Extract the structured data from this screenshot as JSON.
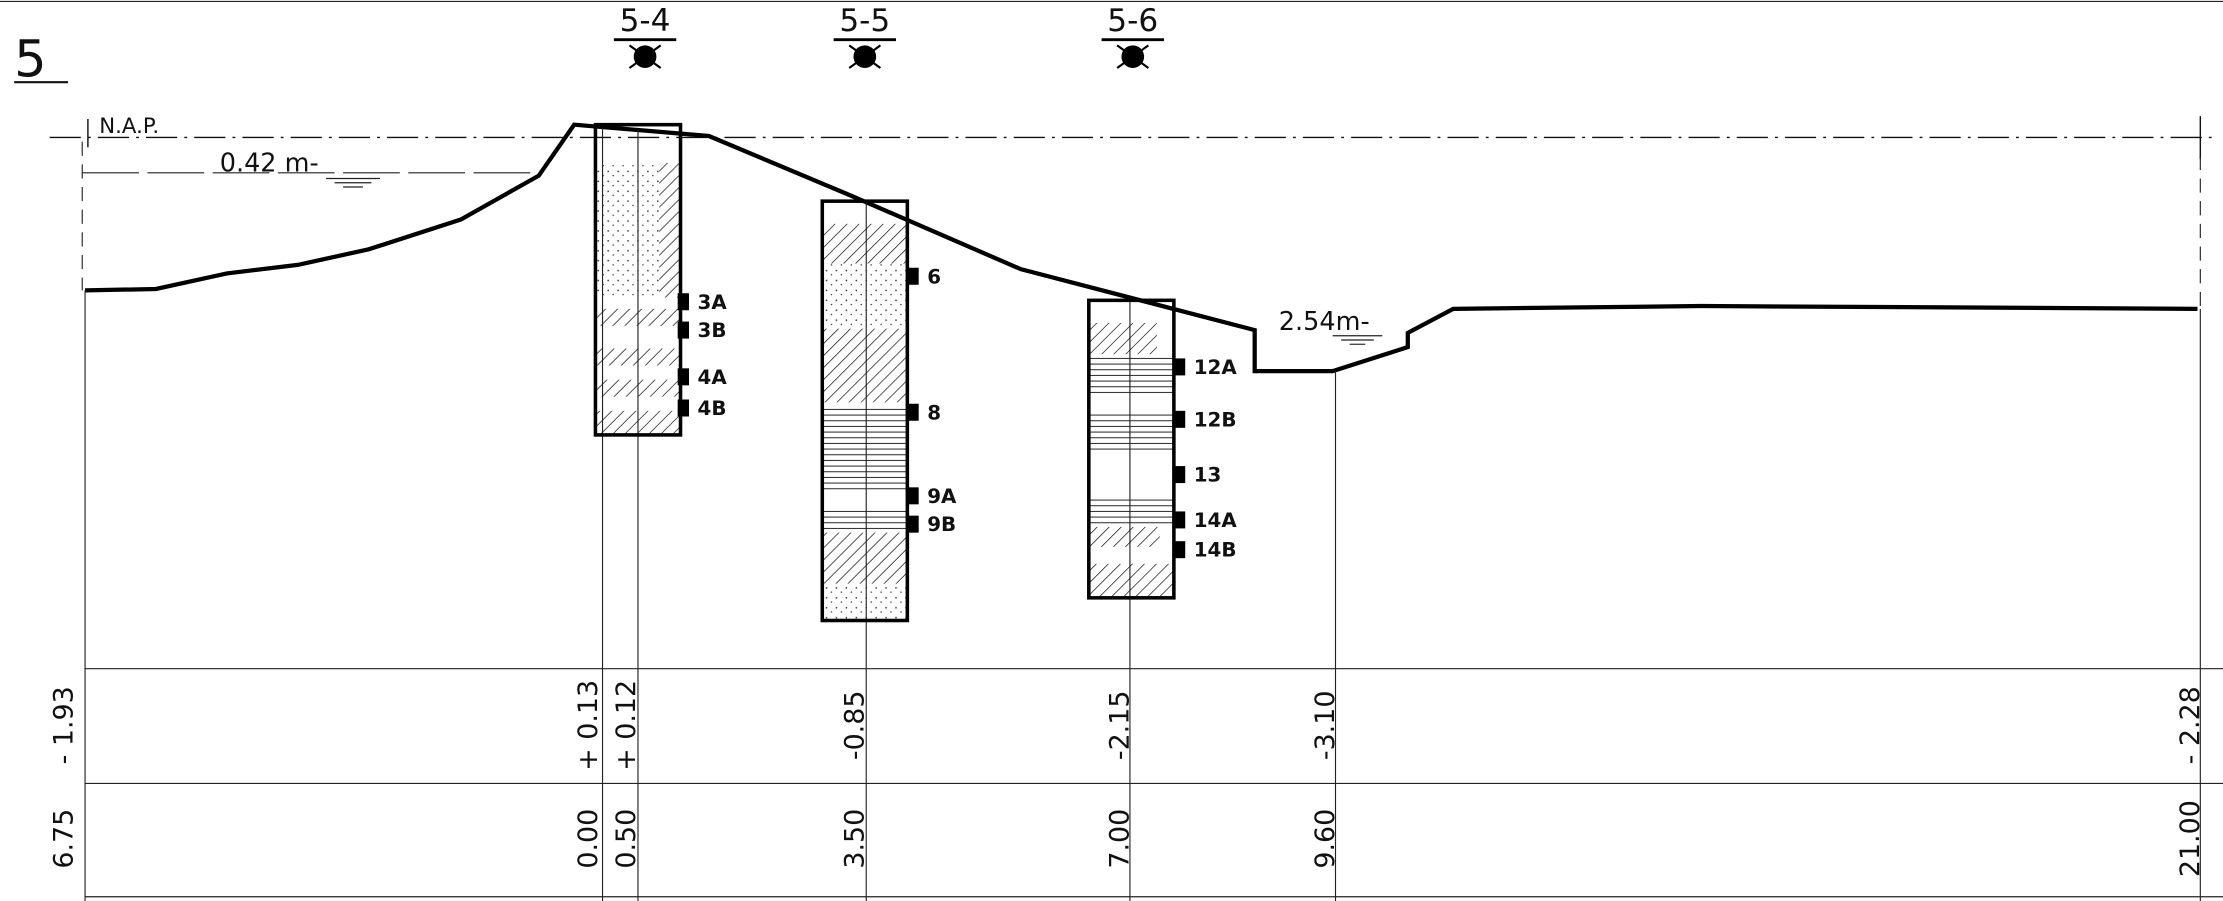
{
  "section_number": "5",
  "boreholes": [
    {
      "label": "5-4",
      "samples": [
        "3A",
        "3B",
        "4A",
        "4B"
      ]
    },
    {
      "label": "5-5",
      "samples": [
        "6",
        "8",
        "9A",
        "9B"
      ]
    },
    {
      "label": "5-6",
      "samples": [
        "12A",
        "12B",
        "13",
        "14A",
        "14B"
      ]
    }
  ],
  "datum_label": "N.A.P.",
  "water_levels": [
    "0.42 m-",
    "2.54m-"
  ],
  "elevations": [
    "- 1.93",
    "+ 0.13",
    "+ 0.12",
    "-0.85",
    "-2.15",
    "-3.10",
    "- 2.28"
  ],
  "distances": [
    "6.75",
    "0.00",
    "0.50",
    "3.50",
    "7.00",
    "9.60",
    "21.00"
  ]
}
